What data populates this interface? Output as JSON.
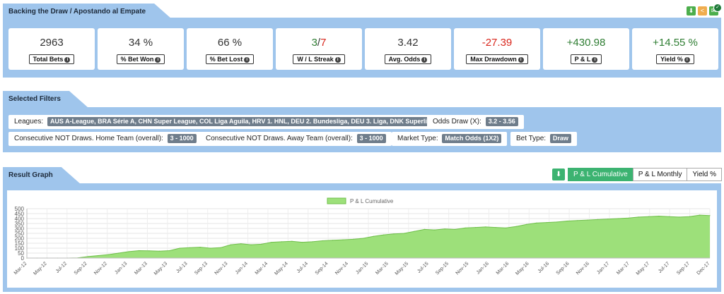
{
  "header": {
    "title": "Backing the Draw / Apostando al Empate"
  },
  "stats": [
    {
      "value": "2963",
      "label": "Total Bets",
      "color": "#333333"
    },
    {
      "value": "34 %",
      "label": "% Bet Won",
      "color": "#333333"
    },
    {
      "value": "66 %",
      "label": "% Bet Lost",
      "color": "#333333"
    },
    {
      "value_a": "3",
      "value_sep": "/",
      "value_b": "7",
      "label": "W / L Streak"
    },
    {
      "value": "3.42",
      "label": "Avg. Odds",
      "color": "#333333"
    },
    {
      "value": "-27.39",
      "label": "Max Drawdown",
      "color": "#d9261c"
    },
    {
      "value": "+430.98",
      "label": "P & L",
      "color": "#2e7d32"
    },
    {
      "value": "+14.55 %",
      "label": "Yield %",
      "color": "#2e7d32"
    }
  ],
  "filters": {
    "title": "Selected Filters",
    "leagues_label": "Leagues:",
    "leagues_value": "AUS A-League, BRA Série A, CHN Super League, COL Liga Aguila, HRV 1. HNL, DEU 2. Bundesliga, DEU 3. Liga, DNK Superliga ...",
    "odds_label": "Odds Draw (X):",
    "odds_value": "3.2 - 3.56",
    "home_label": "Consecutive NOT Draws. Home Team (overall):",
    "home_value": "3 - 1000",
    "away_label": "Consecutive NOT Draws. Away Team (overall):",
    "away_value": "3 - 1000",
    "market_label": "Market Type:",
    "market_value": "Match Odds (1X2)",
    "bettype_label": "Bet Type:",
    "bettype_value": "Draw"
  },
  "graph": {
    "title": "Result Graph",
    "tabs": [
      "P & L Cumulative",
      "P & L Monthly",
      "Yield %"
    ],
    "active_tab": 0
  },
  "icons": {
    "download": "download-icon",
    "share": "share-icon",
    "email": "email-icon",
    "check": "check-icon",
    "info": "info-icon"
  },
  "colors": {
    "panel": "#9fc5ec",
    "area_fill": "#9de07a",
    "area_line": "#6fbf4a",
    "green_btn": "#3cb371"
  },
  "chart_data": {
    "type": "area",
    "series": [
      {
        "name": "P & L Cumulative",
        "values": [
          0,
          -2,
          -1,
          0,
          -1,
          2,
          15,
          25,
          35,
          50,
          65,
          75,
          73,
          70,
          75,
          100,
          105,
          110,
          100,
          105,
          135,
          145,
          135,
          140,
          160,
          165,
          170,
          160,
          165,
          175,
          180,
          185,
          190,
          200,
          220,
          235,
          245,
          250,
          270,
          290,
          285,
          295,
          290,
          305,
          310,
          315,
          310,
          305,
          320,
          340,
          355,
          360,
          365,
          375,
          380,
          385,
          390,
          395,
          400,
          405,
          415,
          420,
          425,
          420,
          415,
          420,
          435,
          430
        ]
      }
    ],
    "xtick_labels": [
      "Mar-12",
      "May-12",
      "Jul-12",
      "Sep-12",
      "Nov-12",
      "Jan-13",
      "Mar-13",
      "May-13",
      "Jul-13",
      "Sep-13",
      "Nov-13",
      "Jan-14",
      "Mar-14",
      "May-14",
      "Jul-14",
      "Sep-14",
      "Nov-14",
      "Jan-15",
      "Mar-15",
      "May-15",
      "Jul-15",
      "Sep-15",
      "Nov-15",
      "Jan-16",
      "Mar-16",
      "May-16",
      "Jul-16",
      "Sep-16",
      "Nov-16",
      "Jan-17",
      "Mar-17",
      "May-17",
      "Jul-17",
      "Sep-17",
      "Dec-17"
    ],
    "yticks": [
      0,
      50,
      100,
      150,
      200,
      250,
      300,
      350,
      400,
      450,
      500
    ],
    "ylim": [
      0,
      500
    ],
    "grid": true,
    "legend": "top-center"
  }
}
